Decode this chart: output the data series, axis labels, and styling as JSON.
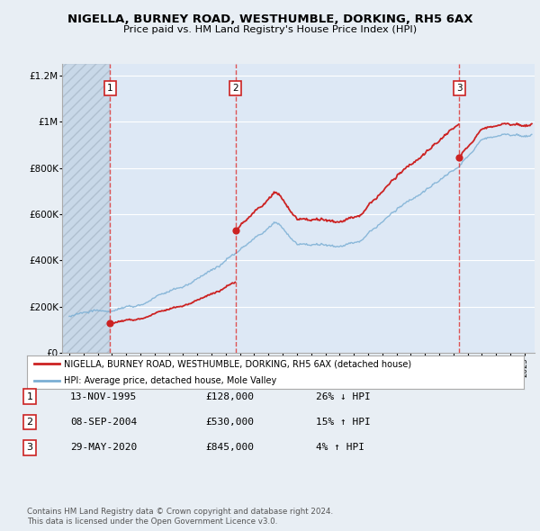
{
  "title": "NIGELLA, BURNEY ROAD, WESTHUMBLE, DORKING, RH5 6AX",
  "subtitle": "Price paid vs. HM Land Registry's House Price Index (HPI)",
  "sale1_date": 1995.87,
  "sale1_price": 128000,
  "sale2_date": 2004.68,
  "sale2_price": 530000,
  "sale3_date": 2020.41,
  "sale3_price": 845000,
  "sale1_date_str": "13-NOV-1995",
  "sale2_date_str": "08-SEP-2004",
  "sale3_date_str": "29-MAY-2020",
  "sale1_hpi_text": "26% ↓ HPI",
  "sale2_hpi_text": "15% ↑ HPI",
  "sale3_hpi_text": "4% ↑ HPI",
  "hpi_color": "#7bafd4",
  "price_color": "#cc2222",
  "dot_color": "#cc2222",
  "vline_color": "#dd4444",
  "bg_color": "#e8eef4",
  "plot_bg": "#dde8f5",
  "hatch_bg": "#c8d4e0",
  "grid_color": "#ffffff",
  "legend_label_red": "NIGELLA, BURNEY ROAD, WESTHUMBLE, DORKING, RH5 6AX (detached house)",
  "legend_label_blue": "HPI: Average price, detached house, Mole Valley",
  "footer1": "Contains HM Land Registry data © Crown copyright and database right 2024.",
  "footer2": "This data is licensed under the Open Government Licence v3.0.",
  "ylim_max": 1250000,
  "xlim_start": 1992.5,
  "xlim_end": 2025.7
}
